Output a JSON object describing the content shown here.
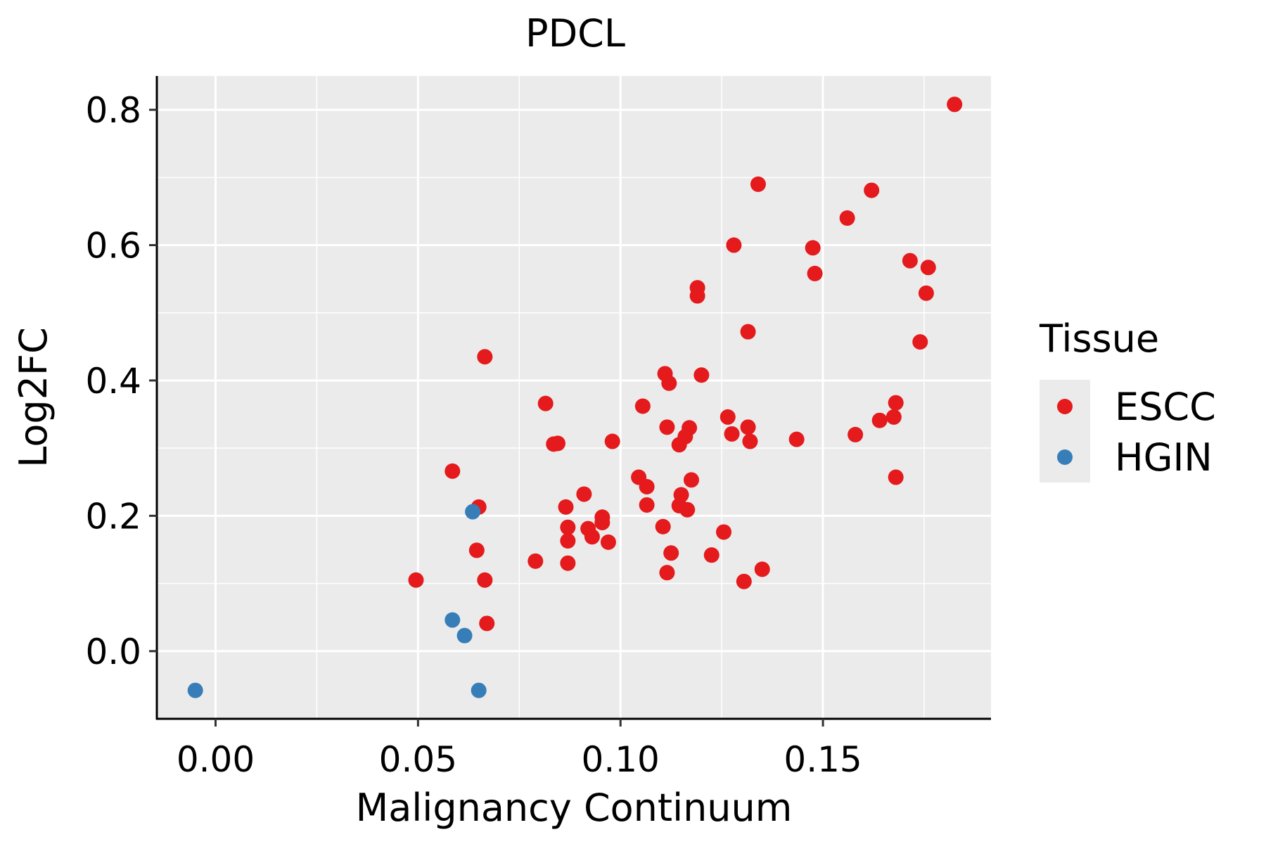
{
  "chart_data": {
    "type": "scatter",
    "title": "PDCL",
    "xlabel": "Malignancy Continuum",
    "ylabel": "Log2FC",
    "xlim": [
      -0.0145,
      0.1915
    ],
    "ylim": [
      -0.1,
      0.85
    ],
    "x_ticks": [
      0.0,
      0.05,
      0.1,
      0.15
    ],
    "x_tick_labels": [
      "0.00",
      "0.05",
      "0.10",
      "0.15"
    ],
    "y_ticks": [
      0.0,
      0.2,
      0.4,
      0.6,
      0.8
    ],
    "y_tick_labels": [
      "0.0",
      "0.2",
      "0.4",
      "0.6",
      "0.8"
    ],
    "grid": true,
    "legend": {
      "title": "Tissue",
      "position": "right",
      "entries": [
        {
          "name": "ESCC",
          "color": "#E41A1C"
        },
        {
          "name": "HGIN",
          "color": "#377EB8"
        }
      ]
    },
    "series": [
      {
        "name": "ESCC",
        "color": "#E41A1C",
        "points": [
          {
            "x": 0.0495,
            "y": 0.105
          },
          {
            "x": 0.0585,
            "y": 0.266
          },
          {
            "x": 0.0645,
            "y": 0.149
          },
          {
            "x": 0.065,
            "y": 0.213
          },
          {
            "x": 0.0665,
            "y": 0.105
          },
          {
            "x": 0.0665,
            "y": 0.435
          },
          {
            "x": 0.067,
            "y": 0.041
          },
          {
            "x": 0.079,
            "y": 0.133
          },
          {
            "x": 0.0815,
            "y": 0.366
          },
          {
            "x": 0.0835,
            "y": 0.306
          },
          {
            "x": 0.0845,
            "y": 0.307
          },
          {
            "x": 0.0865,
            "y": 0.213
          },
          {
            "x": 0.087,
            "y": 0.183
          },
          {
            "x": 0.087,
            "y": 0.163
          },
          {
            "x": 0.087,
            "y": 0.13
          },
          {
            "x": 0.091,
            "y": 0.232
          },
          {
            "x": 0.092,
            "y": 0.181
          },
          {
            "x": 0.093,
            "y": 0.169
          },
          {
            "x": 0.0955,
            "y": 0.19
          },
          {
            "x": 0.0955,
            "y": 0.198
          },
          {
            "x": 0.097,
            "y": 0.161
          },
          {
            "x": 0.098,
            "y": 0.31
          },
          {
            "x": 0.1045,
            "y": 0.257
          },
          {
            "x": 0.1055,
            "y": 0.362
          },
          {
            "x": 0.1065,
            "y": 0.243
          },
          {
            "x": 0.1065,
            "y": 0.216
          },
          {
            "x": 0.1105,
            "y": 0.184
          },
          {
            "x": 0.111,
            "y": 0.41
          },
          {
            "x": 0.1115,
            "y": 0.331
          },
          {
            "x": 0.1115,
            "y": 0.116
          },
          {
            "x": 0.112,
            "y": 0.396
          },
          {
            "x": 0.1125,
            "y": 0.145
          },
          {
            "x": 0.1145,
            "y": 0.215
          },
          {
            "x": 0.1145,
            "y": 0.305
          },
          {
            "x": 0.115,
            "y": 0.231
          },
          {
            "x": 0.116,
            "y": 0.317
          },
          {
            "x": 0.1165,
            "y": 0.209
          },
          {
            "x": 0.117,
            "y": 0.33
          },
          {
            "x": 0.1175,
            "y": 0.253
          },
          {
            "x": 0.119,
            "y": 0.537
          },
          {
            "x": 0.119,
            "y": 0.525
          },
          {
            "x": 0.12,
            "y": 0.408
          },
          {
            "x": 0.1225,
            "y": 0.142
          },
          {
            "x": 0.1255,
            "y": 0.176
          },
          {
            "x": 0.1265,
            "y": 0.346
          },
          {
            "x": 0.1275,
            "y": 0.321
          },
          {
            "x": 0.128,
            "y": 0.6
          },
          {
            "x": 0.1305,
            "y": 0.103
          },
          {
            "x": 0.1315,
            "y": 0.331
          },
          {
            "x": 0.1315,
            "y": 0.472
          },
          {
            "x": 0.132,
            "y": 0.31
          },
          {
            "x": 0.134,
            "y": 0.69
          },
          {
            "x": 0.135,
            "y": 0.121
          },
          {
            "x": 0.1435,
            "y": 0.313
          },
          {
            "x": 0.1475,
            "y": 0.596
          },
          {
            "x": 0.148,
            "y": 0.558
          },
          {
            "x": 0.156,
            "y": 0.64
          },
          {
            "x": 0.158,
            "y": 0.32
          },
          {
            "x": 0.162,
            "y": 0.681
          },
          {
            "x": 0.164,
            "y": 0.341
          },
          {
            "x": 0.1675,
            "y": 0.346
          },
          {
            "x": 0.168,
            "y": 0.367
          },
          {
            "x": 0.168,
            "y": 0.257
          },
          {
            "x": 0.1715,
            "y": 0.577
          },
          {
            "x": 0.174,
            "y": 0.457
          },
          {
            "x": 0.1755,
            "y": 0.529
          },
          {
            "x": 0.176,
            "y": 0.567
          },
          {
            "x": 0.1825,
            "y": 0.808
          }
        ]
      },
      {
        "name": "HGIN",
        "color": "#377EB8",
        "points": [
          {
            "x": -0.005,
            "y": -0.058
          },
          {
            "x": 0.0585,
            "y": 0.046
          },
          {
            "x": 0.0615,
            "y": 0.023
          },
          {
            "x": 0.0635,
            "y": 0.206
          },
          {
            "x": 0.065,
            "y": -0.058
          }
        ]
      }
    ]
  }
}
